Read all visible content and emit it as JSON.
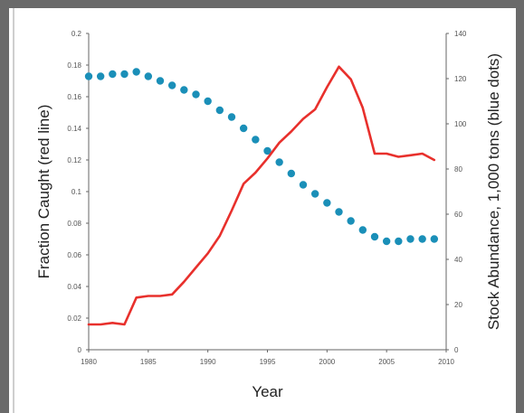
{
  "chart_data": {
    "type": "line",
    "title": "",
    "xlabel": "Year",
    "ylabel_left": "Fraction Caught (red line)",
    "ylabel_right": "Stock Abundance, 1,000 tons (blue dots)",
    "xlim": [
      1980,
      2010
    ],
    "ylim_left": [
      0,
      0.2
    ],
    "ylim_right": [
      0,
      140
    ],
    "x_ticks": [
      "1980",
      "1985",
      "1990",
      "1995",
      "2000",
      "2005",
      "2010"
    ],
    "y_left_ticks": [
      "0",
      "0.02",
      "0.04",
      "0.06",
      "0.08",
      "0.1",
      "0.12",
      "0.14",
      "0.16",
      "0.18",
      "0.2"
    ],
    "y_right_ticks": [
      "0",
      "20",
      "40",
      "60",
      "80",
      "100",
      "120",
      "140"
    ],
    "grid": false,
    "colors": {
      "red_line": "#e8302c",
      "blue_dots": "#1a8fb8"
    },
    "series": [
      {
        "axis": "left",
        "style": "line",
        "x": [
          1980,
          1981,
          1982,
          1983,
          1984,
          1985,
          1986,
          1987,
          1988,
          1989,
          1990,
          1991,
          1992,
          1993,
          1994,
          1995,
          1996,
          1997,
          1998,
          1999,
          2000,
          2001,
          2002,
          2003,
          2004,
          2005,
          2006,
          2007,
          2008,
          2009
        ],
        "values": [
          0.016,
          0.016,
          0.017,
          0.016,
          0.033,
          0.034,
          0.034,
          0.035,
          0.043,
          0.052,
          0.061,
          0.072,
          0.088,
          0.105,
          0.112,
          0.121,
          0.131,
          0.138,
          0.146,
          0.152,
          0.166,
          0.179,
          0.171,
          0.153,
          0.124,
          0.124,
          0.122,
          0.123,
          0.124,
          0.12
        ]
      },
      {
        "axis": "right",
        "style": "dots",
        "x": [
          1980,
          1981,
          1982,
          1983,
          1984,
          1985,
          1986,
          1987,
          1988,
          1989,
          1990,
          1991,
          1992,
          1993,
          1994,
          1995,
          1996,
          1997,
          1998,
          1999,
          2000,
          2001,
          2002,
          2003,
          2004,
          2005,
          2006,
          2007,
          2008,
          2009
        ],
        "values": [
          121,
          121,
          122,
          122,
          123,
          121,
          119,
          117,
          115,
          113,
          110,
          106,
          103,
          98,
          93,
          88,
          83,
          78,
          73,
          69,
          65,
          61,
          57,
          53,
          50,
          48,
          48,
          49,
          49,
          49
        ]
      }
    ]
  }
}
